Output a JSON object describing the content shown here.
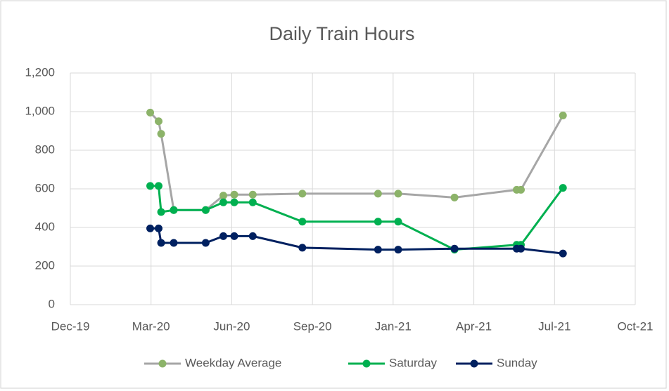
{
  "chart_data": {
    "type": "line",
    "title": "Daily Train Hours",
    "x": [
      43909,
      43919,
      43922,
      43937,
      43975,
      43996,
      44009,
      44031,
      44090,
      44180,
      44204,
      44271,
      44345,
      44350,
      44400
    ],
    "series": [
      {
        "name": "Weekday Average",
        "color": "#a6a6a6",
        "marker_color": "#8cb369",
        "values": [
          995,
          950,
          885,
          490,
          490,
          565,
          570,
          570,
          575,
          575,
          575,
          555,
          595,
          595,
          980
        ]
      },
      {
        "name": "Saturday",
        "color": "#00b050",
        "marker_color": "#00b050",
        "values": [
          615,
          615,
          480,
          490,
          490,
          530,
          530,
          530,
          430,
          430,
          430,
          285,
          310,
          310,
          605
        ]
      },
      {
        "name": "Sunday",
        "color": "#002060",
        "marker_color": "#002060",
        "values": [
          395,
          395,
          320,
          320,
          320,
          355,
          355,
          355,
          295,
          285,
          285,
          290,
          290,
          290,
          265
        ]
      }
    ],
    "xlim": [
      43814,
      44486
    ],
    "xticks": [
      {
        "value": 43814,
        "label": "Dec-19"
      },
      {
        "value": 43910,
        "label": "Mar-20"
      },
      {
        "value": 44006,
        "label": "Jun-20"
      },
      {
        "value": 44102,
        "label": "Sep-20"
      },
      {
        "value": 44198,
        "label": "Jan-21"
      },
      {
        "value": 44294,
        "label": "Apr-21"
      },
      {
        "value": 44390,
        "label": "Jul-21"
      },
      {
        "value": 44486,
        "label": "Oct-21"
      }
    ],
    "ylim": [
      0,
      1200
    ],
    "yticks": [
      0,
      200,
      400,
      600,
      800,
      {
        "value": 1000,
        "label": "1,000"
      },
      {
        "value": 1200,
        "label": "1,200"
      }
    ],
    "grid": true,
    "legend": "bottom"
  }
}
